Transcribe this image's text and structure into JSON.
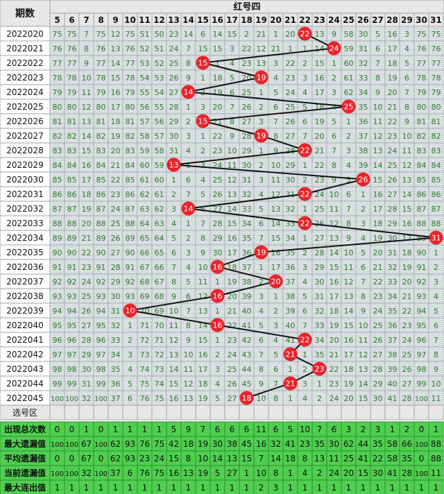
{
  "header": {
    "period_label": "期数",
    "section_title": "红号四"
  },
  "columns": [
    5,
    6,
    7,
    8,
    9,
    10,
    11,
    12,
    13,
    14,
    15,
    16,
    17,
    18,
    19,
    20,
    21,
    22,
    23,
    24,
    25,
    26,
    27,
    28,
    29,
    30,
    31
  ],
  "chart_data": {
    "type": "table",
    "title": "红号四",
    "periods": [
      "2022020",
      "2022021",
      "2022022",
      "2022023",
      "2022024",
      "2022025",
      "2022026",
      "2022027",
      "2022028",
      "2022029",
      "2022030",
      "2022031",
      "2022032",
      "2022033",
      "2022034",
      "2022035",
      "2022036",
      "2022037",
      "2022038",
      "2022039",
      "2022040",
      "2022041",
      "2022042",
      "2022043",
      "2022044",
      "2022045"
    ],
    "winning_numbers": [
      22,
      24,
      15,
      19,
      14,
      25,
      15,
      19,
      22,
      13,
      26,
      22,
      14,
      22,
      31,
      19,
      16,
      20,
      16,
      10,
      16,
      22,
      21,
      23,
      21,
      18
    ],
    "omission_rows": [
      [
        75,
        75,
        7,
        75,
        12,
        75,
        51,
        50,
        23,
        14,
        6,
        14,
        15,
        2,
        21,
        1,
        20,
        22,
        13,
        9,
        58,
        30,
        5,
        16,
        3,
        75,
        75
      ],
      [
        76,
        76,
        8,
        76,
        13,
        76,
        52,
        51,
        24,
        7,
        15,
        15,
        3,
        22,
        12,
        21,
        1,
        1,
        14,
        24,
        59,
        31,
        6,
        17,
        4,
        76,
        76
      ],
      [
        77,
        77,
        9,
        77,
        14,
        77,
        53,
        52,
        25,
        8,
        15,
        1,
        4,
        23,
        13,
        3,
        22,
        2,
        15,
        1,
        60,
        32,
        7,
        18,
        5,
        77,
        77
      ],
      [
        78,
        78,
        10,
        78,
        15,
        78,
        54,
        53,
        26,
        9,
        1,
        18,
        5,
        20,
        19,
        4,
        23,
        3,
        16,
        2,
        61,
        33,
        8,
        19,
        6,
        78,
        78
      ],
      [
        79,
        79,
        11,
        79,
        16,
        79,
        55,
        54,
        27,
        14,
        2,
        19,
        6,
        25,
        1,
        5,
        24,
        4,
        17,
        3,
        62,
        34,
        9,
        20,
        7,
        79,
        79
      ],
      [
        80,
        80,
        12,
        80,
        17,
        80,
        56,
        55,
        28,
        1,
        3,
        20,
        7,
        26,
        2,
        6,
        25,
        5,
        18,
        4,
        25,
        35,
        10,
        21,
        8,
        80,
        80
      ],
      [
        81,
        81,
        13,
        81,
        18,
        81,
        57,
        56,
        29,
        2,
        15,
        21,
        8,
        27,
        3,
        7,
        26,
        6,
        19,
        5,
        1,
        36,
        11,
        22,
        9,
        81,
        81
      ],
      [
        82,
        82,
        14,
        82,
        19,
        82,
        58,
        57,
        30,
        3,
        1,
        22,
        9,
        28,
        19,
        8,
        27,
        7,
        20,
        6,
        2,
        37,
        12,
        23,
        10,
        82,
        82
      ],
      [
        83,
        83,
        15,
        83,
        20,
        83,
        59,
        58,
        31,
        4,
        2,
        23,
        10,
        29,
        1,
        9,
        28,
        22,
        21,
        7,
        3,
        38,
        13,
        24,
        11,
        83,
        83
      ],
      [
        84,
        84,
        16,
        84,
        21,
        84,
        60,
        59,
        13,
        5,
        3,
        24,
        11,
        30,
        2,
        10,
        29,
        1,
        22,
        8,
        4,
        39,
        14,
        25,
        12,
        84,
        84
      ],
      [
        85,
        85,
        17,
        85,
        22,
        85,
        61,
        60,
        1,
        6,
        4,
        25,
        12,
        31,
        3,
        11,
        30,
        2,
        23,
        9,
        5,
        26,
        15,
        26,
        13,
        85,
        85
      ],
      [
        86,
        86,
        18,
        86,
        23,
        86,
        62,
        61,
        2,
        7,
        5,
        26,
        13,
        32,
        4,
        12,
        31,
        22,
        24,
        10,
        6,
        1,
        16,
        27,
        14,
        86,
        86
      ],
      [
        87,
        87,
        19,
        87,
        24,
        87,
        63,
        62,
        3,
        14,
        6,
        27,
        14,
        33,
        5,
        13,
        32,
        1,
        25,
        11,
        7,
        2,
        17,
        28,
        15,
        87,
        87
      ],
      [
        88,
        88,
        20,
        88,
        25,
        88,
        64,
        63,
        4,
        1,
        7,
        28,
        15,
        34,
        6,
        14,
        33,
        22,
        26,
        12,
        8,
        3,
        18,
        29,
        16,
        88,
        88
      ],
      [
        89,
        89,
        21,
        89,
        26,
        89,
        65,
        64,
        5,
        2,
        8,
        29,
        16,
        35,
        7,
        15,
        34,
        1,
        27,
        13,
        9,
        4,
        19,
        30,
        17,
        89,
        31
      ],
      [
        90,
        90,
        22,
        90,
        27,
        90,
        66,
        65,
        6,
        3,
        9,
        30,
        17,
        36,
        19,
        16,
        35,
        2,
        28,
        14,
        10,
        5,
        20,
        31,
        18,
        90,
        1
      ],
      [
        91,
        91,
        23,
        91,
        28,
        91,
        67,
        66,
        7,
        4,
        10,
        16,
        18,
        37,
        1,
        17,
        36,
        3,
        29,
        15,
        11,
        6,
        21,
        32,
        19,
        91,
        2
      ],
      [
        92,
        92,
        24,
        92,
        29,
        92,
        68,
        67,
        8,
        5,
        11,
        1,
        19,
        38,
        2,
        20,
        37,
        4,
        30,
        16,
        12,
        7,
        22,
        33,
        20,
        92,
        3
      ],
      [
        93,
        93,
        25,
        93,
        30,
        93,
        69,
        68,
        9,
        6,
        12,
        16,
        20,
        39,
        3,
        1,
        38,
        5,
        31,
        17,
        13,
        8,
        23,
        34,
        21,
        93,
        4
      ],
      [
        94,
        94,
        26,
        94,
        31,
        10,
        70,
        69,
        10,
        7,
        13,
        1,
        21,
        40,
        4,
        2,
        39,
        6,
        32,
        18,
        14,
        9,
        24,
        35,
        22,
        94,
        5
      ],
      [
        95,
        95,
        27,
        95,
        32,
        1,
        71,
        70,
        11,
        8,
        14,
        16,
        22,
        41,
        5,
        3,
        40,
        7,
        33,
        19,
        15,
        10,
        25,
        36,
        23,
        95,
        6
      ],
      [
        96,
        96,
        28,
        96,
        33,
        2,
        72,
        71,
        12,
        9,
        15,
        1,
        23,
        42,
        6,
        4,
        41,
        22,
        34,
        20,
        16,
        11,
        26,
        37,
        24,
        96,
        7
      ],
      [
        97,
        97,
        29,
        97,
        34,
        3,
        73,
        72,
        13,
        10,
        16,
        2,
        24,
        43,
        7,
        5,
        21,
        1,
        35,
        21,
        17,
        12,
        27,
        38,
        25,
        97,
        8
      ],
      [
        98,
        98,
        30,
        98,
        35,
        4,
        74,
        73,
        14,
        11,
        17,
        3,
        25,
        44,
        8,
        6,
        1,
        2,
        23,
        22,
        18,
        13,
        28,
        39,
        26,
        98,
        9
      ],
      [
        99,
        99,
        31,
        99,
        36,
        5,
        75,
        74,
        15,
        12,
        18,
        4,
        26,
        45,
        9,
        7,
        21,
        3,
        1,
        23,
        19,
        14,
        29,
        40,
        27,
        99,
        10
      ],
      [
        100,
        100,
        32,
        100,
        37,
        6,
        76,
        75,
        16,
        13,
        19,
        5,
        27,
        18,
        10,
        8,
        1,
        4,
        2,
        24,
        20,
        15,
        30,
        41,
        28,
        100,
        11
      ]
    ],
    "selection_label": "选号区",
    "stats": [
      {
        "label": "出现总次数",
        "values": [
          0,
          0,
          1,
          0,
          1,
          1,
          1,
          1,
          5,
          9,
          7,
          6,
          6,
          6,
          11,
          6,
          5,
          10,
          7,
          6,
          3,
          2,
          3,
          1,
          2,
          0,
          1
        ]
      },
      {
        "label": "最大遗漏值",
        "values": [
          100,
          100,
          67,
          100,
          62,
          93,
          76,
          75,
          42,
          18,
          19,
          30,
          38,
          45,
          16,
          32,
          41,
          23,
          35,
          30,
          62,
          44,
          35,
          58,
          66,
          100,
          88
        ]
      },
      {
        "label": "平均遗漏值",
        "values": [
          0,
          0,
          67,
          0,
          62,
          93,
          23,
          24,
          15,
          8,
          10,
          14,
          13,
          15,
          7,
          14,
          18,
          8,
          13,
          11,
          25,
          41,
          22,
          58,
          35,
          0,
          88
        ]
      },
      {
        "label": "当前遗漏值",
        "values": [
          100,
          100,
          32,
          100,
          37,
          6,
          76,
          75,
          16,
          13,
          19,
          5,
          27,
          1,
          10,
          8,
          1,
          4,
          2,
          24,
          20,
          15,
          30,
          41,
          28,
          100,
          11
        ]
      },
      {
        "label": "最大连出值",
        "values": [
          1,
          1,
          1,
          1,
          1,
          1,
          1,
          1,
          1,
          1,
          1,
          1,
          1,
          1,
          2,
          3,
          1,
          1,
          1,
          1,
          1,
          1,
          1,
          1,
          1,
          1,
          1
        ]
      }
    ]
  },
  "colors": {
    "header_bg": "#e7e7e7",
    "cell_bg": "#d9dee0",
    "cell_text": "#2b7a2b",
    "ball": "#e8242b",
    "stats_bg": "#4fcf4f",
    "line": "#111111",
    "grid_line": "#9aa6aa"
  }
}
